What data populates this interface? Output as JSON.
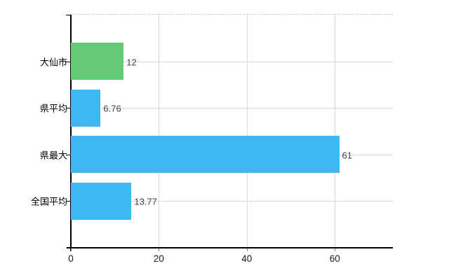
{
  "chart_data": {
    "type": "bar",
    "orientation": "horizontal",
    "title": "",
    "xlabel": "",
    "ylabel": "",
    "categories": [
      "大仙市",
      "県平均",
      "県最大",
      "全国平均"
    ],
    "values": [
      12,
      6.76,
      61,
      13.77
    ],
    "value_labels": [
      "12",
      "6.76",
      "61",
      "13.77"
    ],
    "bar_colors": [
      "#65c878",
      "#3db8f3",
      "#3db8f3",
      "#3db8f3"
    ],
    "x_tick_labels": [
      "0",
      "20",
      "40",
      "60"
    ],
    "x_tick_values": [
      0,
      20,
      40,
      60
    ],
    "xlim": [
      0,
      73.2
    ],
    "grid": true,
    "grid_color": "#d9d9d9",
    "top_border_style": "dashed",
    "legend": false,
    "background": "#ffffff",
    "axis_color": "#000000",
    "category_label_color": "#000000",
    "value_label_color": "#404040"
  }
}
